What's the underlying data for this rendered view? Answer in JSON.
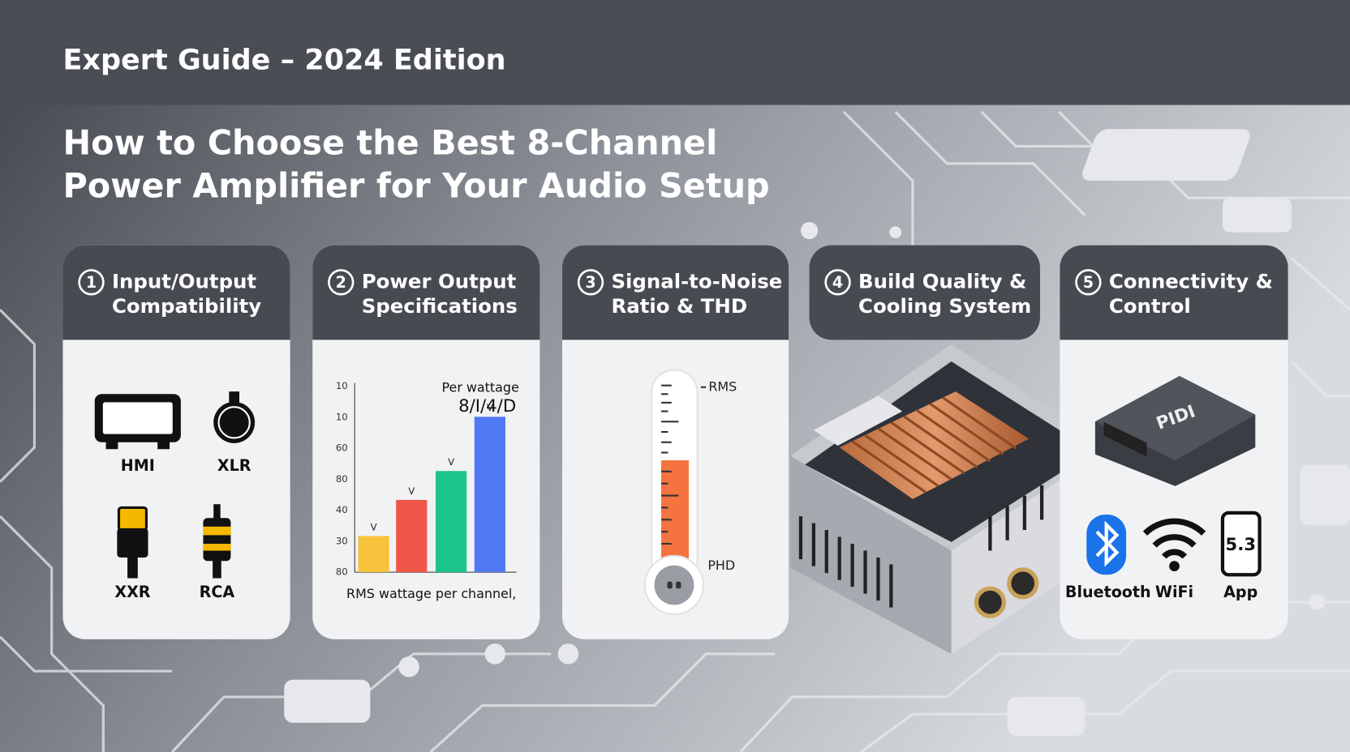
{
  "header": {
    "title": "Expert Guide – 2024 Edition"
  },
  "title": [
    "How to Choose the Best 8-Channel",
    "Power Amplifier for Your Audio Setup"
  ],
  "cards": [
    {
      "number": "1",
      "title": [
        "Input/Output",
        "Compatibility"
      ],
      "items": [
        "HMI",
        "XLR",
        "XXR",
        "RCA"
      ]
    },
    {
      "number": "2",
      "title": [
        "Power Output",
        "Specifications"
      ],
      "chart": {
        "type": "bar",
        "annotation": [
          "Per wattage",
          "8/I/4/D"
        ],
        "tick_labels": [
          "10",
          "10",
          "60",
          "80",
          "40",
          "30",
          "80"
        ],
        "values": [
          1,
          2,
          2.8,
          4.3
        ],
        "ylim": [
          0,
          6
        ],
        "colors": [
          "#f7c23c",
          "#f0574a",
          "#1dc48a",
          "#5179f3"
        ],
        "bar_labels": [
          "V",
          "V",
          "V",
          "V"
        ],
        "xlabel": "RMS wattage per channel,"
      }
    },
    {
      "number": "3",
      "title": [
        "Signal-to-Noise",
        "Ratio & THD"
      ],
      "labels": [
        "RMS",
        "PHD"
      ]
    },
    {
      "number": "4",
      "title": [
        "Build Quality &",
        "Cooling System"
      ]
    },
    {
      "number": "5",
      "title": [
        "Connectivity &",
        "Control"
      ],
      "device": "PIDI",
      "items": [
        "Bluetooth",
        "WiFi",
        "App"
      ],
      "app_version": "5.3"
    }
  ]
}
